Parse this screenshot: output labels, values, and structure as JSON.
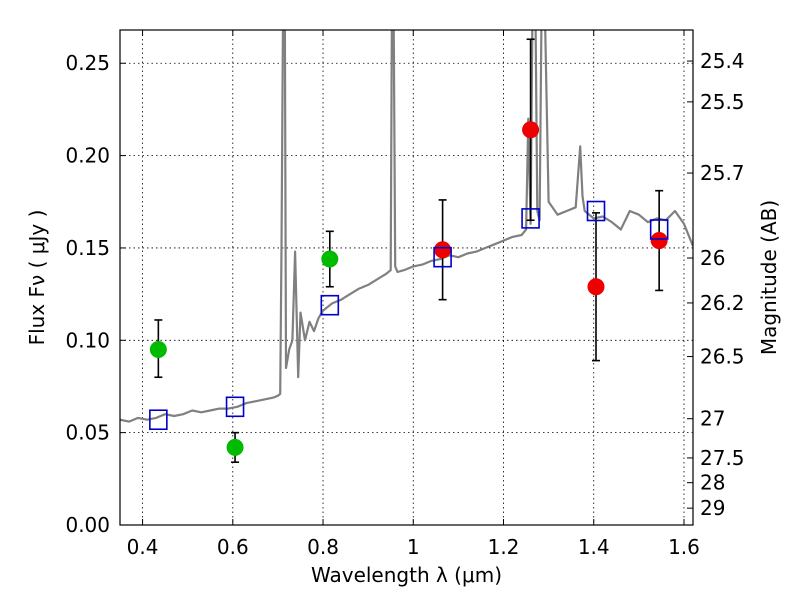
{
  "chart_data": {
    "type": "scatter",
    "xlabel": "Wavelength  λ (μm)",
    "ylabel": "Flux  Fν  ( μJy )",
    "ylabel_right": "Magnitude (AB)",
    "xlim": [
      0.35,
      1.62
    ],
    "ylim": [
      0.0,
      0.268
    ],
    "x_ticks": [
      0.4,
      0.6,
      0.8,
      1.0,
      1.2,
      1.4,
      1.6
    ],
    "x_tick_labels": [
      "0.4",
      "0.6",
      "0.8",
      "1",
      "1.2",
      "1.4",
      "1.6"
    ],
    "y_ticks": [
      0.0,
      0.05,
      0.1,
      0.15,
      0.2,
      0.25
    ],
    "y_tick_labels": [
      "0.00",
      "0.05",
      "0.10",
      "0.15",
      "0.20",
      "0.25"
    ],
    "right_ticks": [
      {
        "label": "25.4",
        "value": 25.4
      },
      {
        "label": "25.5",
        "value": 25.5
      },
      {
        "label": "25.7",
        "value": 25.7
      },
      {
        "label": "26",
        "value": 26.0
      },
      {
        "label": "26.2",
        "value": 26.2
      },
      {
        "label": "26.5",
        "value": 26.5
      },
      {
        "label": "27",
        "value": 27.0
      },
      {
        "label": "27.5",
        "value": 27.5
      },
      {
        "label": "28",
        "value": 28.0
      },
      {
        "label": "29",
        "value": 29.0
      }
    ],
    "grid": true,
    "spectrum": {
      "name": "model spectrum",
      "color": "#808080",
      "x": [
        0.35,
        0.37,
        0.39,
        0.41,
        0.43,
        0.45,
        0.47,
        0.49,
        0.51,
        0.53,
        0.55,
        0.57,
        0.59,
        0.61,
        0.63,
        0.65,
        0.67,
        0.69,
        0.7,
        0.705,
        0.708,
        0.712,
        0.715,
        0.718,
        0.725,
        0.732,
        0.738,
        0.745,
        0.75,
        0.76,
        0.77,
        0.78,
        0.79,
        0.8,
        0.82,
        0.84,
        0.86,
        0.88,
        0.9,
        0.92,
        0.94,
        0.95,
        0.953,
        0.956,
        0.96,
        0.965,
        0.98,
        1.0,
        1.02,
        1.04,
        1.06,
        1.08,
        1.1,
        1.12,
        1.14,
        1.16,
        1.18,
        1.2,
        1.22,
        1.24,
        1.25,
        1.255,
        1.26,
        1.265,
        1.27,
        1.275,
        1.28,
        1.285,
        1.29,
        1.3,
        1.32,
        1.34,
        1.36,
        1.37,
        1.375,
        1.38,
        1.39,
        1.4,
        1.42,
        1.44,
        1.46,
        1.48,
        1.5,
        1.52,
        1.54,
        1.56,
        1.58,
        1.6,
        1.62
      ],
      "y": [
        0.057,
        0.056,
        0.058,
        0.057,
        0.058,
        0.06,
        0.059,
        0.06,
        0.062,
        0.061,
        0.062,
        0.063,
        0.063,
        0.064,
        0.066,
        0.067,
        0.068,
        0.069,
        0.07,
        0.071,
        0.15,
        0.3,
        0.3,
        0.085,
        0.095,
        0.1,
        0.148,
        0.08,
        0.115,
        0.1,
        0.11,
        0.105,
        0.112,
        0.116,
        0.12,
        0.122,
        0.125,
        0.128,
        0.13,
        0.133,
        0.136,
        0.138,
        0.3,
        0.3,
        0.14,
        0.137,
        0.138,
        0.14,
        0.141,
        0.143,
        0.144,
        0.146,
        0.145,
        0.147,
        0.148,
        0.15,
        0.152,
        0.154,
        0.156,
        0.157,
        0.16,
        0.22,
        0.163,
        0.3,
        0.3,
        0.17,
        0.165,
        0.3,
        0.3,
        0.175,
        0.168,
        0.17,
        0.172,
        0.205,
        0.178,
        0.17,
        0.168,
        0.166,
        0.167,
        0.164,
        0.16,
        0.17,
        0.168,
        0.164,
        0.166,
        0.165,
        0.17,
        0.163,
        0.151
      ]
    },
    "series": [
      {
        "name": "green observations",
        "marker": "circle",
        "color": "#00bb00",
        "points": [
          {
            "x": 0.435,
            "y": 0.095,
            "err_lo": 0.015,
            "err_hi": 0.016
          },
          {
            "x": 0.605,
            "y": 0.042,
            "err_lo": 0.008,
            "err_hi": 0.008
          },
          {
            "x": 0.815,
            "y": 0.144,
            "err_lo": 0.015,
            "err_hi": 0.015
          }
        ]
      },
      {
        "name": "red observations",
        "marker": "circle",
        "color": "#ee0000",
        "points": [
          {
            "x": 1.065,
            "y": 0.149,
            "err_lo": 0.027,
            "err_hi": 0.027
          },
          {
            "x": 1.26,
            "y": 0.214,
            "err_lo": 0.049,
            "err_hi": 0.049
          },
          {
            "x": 1.405,
            "y": 0.129,
            "err_lo": 0.04,
            "err_hi": 0.04
          },
          {
            "x": 1.545,
            "y": 0.154,
            "err_lo": 0.027,
            "err_hi": 0.027
          }
        ]
      },
      {
        "name": "model photometry",
        "marker": "square",
        "color": "#0000cc",
        "points": [
          {
            "x": 0.435,
            "y": 0.057
          },
          {
            "x": 0.605,
            "y": 0.064
          },
          {
            "x": 0.815,
            "y": 0.119
          },
          {
            "x": 1.065,
            "y": 0.145
          },
          {
            "x": 1.26,
            "y": 0.166
          },
          {
            "x": 1.405,
            "y": 0.17
          },
          {
            "x": 1.545,
            "y": 0.16
          }
        ]
      }
    ]
  }
}
